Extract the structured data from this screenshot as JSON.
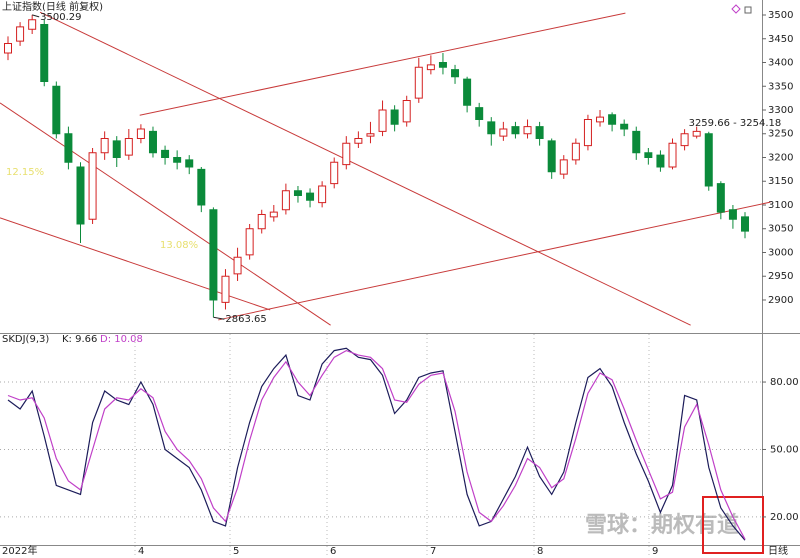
{
  "chart_data": {
    "type": "candlestick",
    "title": "上证指数(日线 前复权)",
    "open": [
      3420,
      3445,
      3470,
      3480,
      3350,
      3250,
      3180,
      3070,
      3210,
      3235,
      3205,
      3240,
      3255,
      3215,
      3200,
      3195,
      3175,
      3090,
      2895,
      2955,
      2995,
      3050,
      3075,
      3090,
      3130,
      3125,
      3105,
      3145,
      3185,
      3230,
      3245,
      3255,
      3300,
      3275,
      3325,
      3385,
      3400,
      3385,
      3365,
      3305,
      3275,
      3245,
      3265,
      3250,
      3265,
      3235,
      3165,
      3195,
      3225,
      3275,
      3290,
      3270,
      3255,
      3210,
      3205,
      3180,
      3225,
      3245,
      3250,
      3145,
      3090,
      3075
    ],
    "high": [
      3455,
      3485,
      3500.29,
      3490,
      3360,
      3265,
      3190,
      3220,
      3255,
      3245,
      3260,
      3270,
      3265,
      3225,
      3215,
      3205,
      3180,
      3095,
      2965,
      3010,
      3060,
      3090,
      3100,
      3145,
      3140,
      3135,
      3150,
      3200,
      3245,
      3255,
      3275,
      3320,
      3310,
      3330,
      3410,
      3415,
      3420,
      3395,
      3370,
      3315,
      3285,
      3275,
      3275,
      3280,
      3275,
      3240,
      3205,
      3240,
      3290,
      3300,
      3295,
      3280,
      3265,
      3220,
      3215,
      3240,
      3259.66,
      3265,
      3254.18,
      3150,
      3100,
      3085
    ],
    "low": [
      3405,
      3435,
      3460,
      3350,
      3240,
      3175,
      3020,
      3060,
      3195,
      3180,
      3195,
      3230,
      3200,
      3185,
      3175,
      3165,
      3085,
      2863.65,
      2880,
      2940,
      2985,
      3040,
      3065,
      3080,
      3105,
      3095,
      3095,
      3135,
      3175,
      3220,
      3230,
      3245,
      3255,
      3265,
      3315,
      3375,
      3375,
      3355,
      3295,
      3265,
      3225,
      3235,
      3240,
      3240,
      3225,
      3155,
      3155,
      3185,
      3215,
      3265,
      3255,
      3245,
      3195,
      3185,
      3170,
      3175,
      3215,
      3240,
      3130,
      3070,
      3050,
      3030
    ],
    "close": [
      3440,
      3475,
      3490,
      3360,
      3250,
      3190,
      3060,
      3210,
      3240,
      3200,
      3240,
      3260,
      3210,
      3200,
      3190,
      3180,
      3100,
      2900,
      2950,
      2990,
      3050,
      3080,
      3085,
      3130,
      3120,
      3110,
      3140,
      3190,
      3230,
      3240,
      3250,
      3300,
      3270,
      3320,
      3390,
      3395,
      3390,
      3370,
      3310,
      3280,
      3250,
      3260,
      3250,
      3265,
      3240,
      3170,
      3195,
      3230,
      3280,
      3285,
      3270,
      3260,
      3210,
      3200,
      3180,
      3230,
      3250,
      3255,
      3140,
      3085,
      3070,
      3045
    ],
    "up_color": "#d42020",
    "down_color": "#0b8a3a",
    "ylim": [
      2836.8,
      3531.6
    ],
    "yticks": [
      2900,
      2950,
      3000,
      3050,
      3100,
      3150,
      3200,
      3250,
      3300,
      3350,
      3400,
      3450,
      3500
    ],
    "trendlines": [
      {
        "x": [
          2.65,
          56.5
        ],
        "y": [
          3506,
          2847
        ]
      },
      {
        "x": [
          -0.66,
          26.7
        ],
        "y": [
          3315,
          2847
        ]
      },
      {
        "x": [
          -0.66,
          21.7
        ],
        "y": [
          3073,
          2879
        ]
      },
      {
        "x": [
          10.9,
          51.1
        ],
        "y": [
          3289,
          3504
        ]
      },
      {
        "x": [
          17.4,
          63.1
        ],
        "y": [
          2858,
          3106
        ]
      }
    ],
    "trend_color": "#c83a3a",
    "range_label": "3259.66 - 3254.18",
    "pct_labels": [
      "12.15%",
      "13.08%"
    ],
    "x_labels": [
      "2022年",
      "4",
      "5",
      "6",
      "7",
      "8",
      "9"
    ],
    "period_label": "日线",
    "watermark": "雪球：期权有道",
    "indicator": {
      "type": "line",
      "name": "SKDJ(9,3)",
      "k_label": "K: 9.66",
      "d_label": "D: 10.08",
      "ylim": [
        8.4,
        98.7
      ],
      "yticks": [
        {
          "value": 20,
          "label": "20.00"
        },
        {
          "value": 50,
          "label": "50.00"
        },
        {
          "value": 80,
          "label": "80.00"
        }
      ],
      "series": [
        {
          "name": "K",
          "color": "#1c1c5a",
          "values": [
            72,
            68,
            76,
            56,
            34,
            32,
            30,
            62,
            76,
            72,
            70,
            80,
            70,
            50,
            46,
            42,
            32,
            18,
            16,
            42,
            62,
            78,
            86,
            92,
            74,
            72,
            88,
            94,
            95,
            91,
            90,
            83,
            66,
            72,
            82,
            84,
            85,
            58,
            30,
            16,
            18,
            28,
            38,
            51,
            38,
            30,
            40,
            62,
            82,
            86,
            78,
            62,
            48,
            36,
            22,
            34,
            74,
            72,
            42,
            24,
            16,
            9.66
          ]
        },
        {
          "name": "D",
          "color": "#c040c8",
          "values": [
            74,
            72,
            73,
            64,
            46,
            36,
            32,
            50,
            68,
            73,
            72,
            77,
            73,
            58,
            50,
            45,
            37,
            24,
            18,
            33,
            54,
            72,
            82,
            89,
            80,
            74,
            83,
            91,
            94,
            92,
            91,
            86,
            72,
            71,
            79,
            83,
            84,
            67,
            40,
            22,
            18,
            25,
            34,
            46,
            42,
            33,
            37,
            55,
            75,
            84,
            81,
            68,
            54,
            41,
            28,
            31,
            60,
            70,
            52,
            32,
            20,
            10.08
          ]
        }
      ]
    }
  }
}
